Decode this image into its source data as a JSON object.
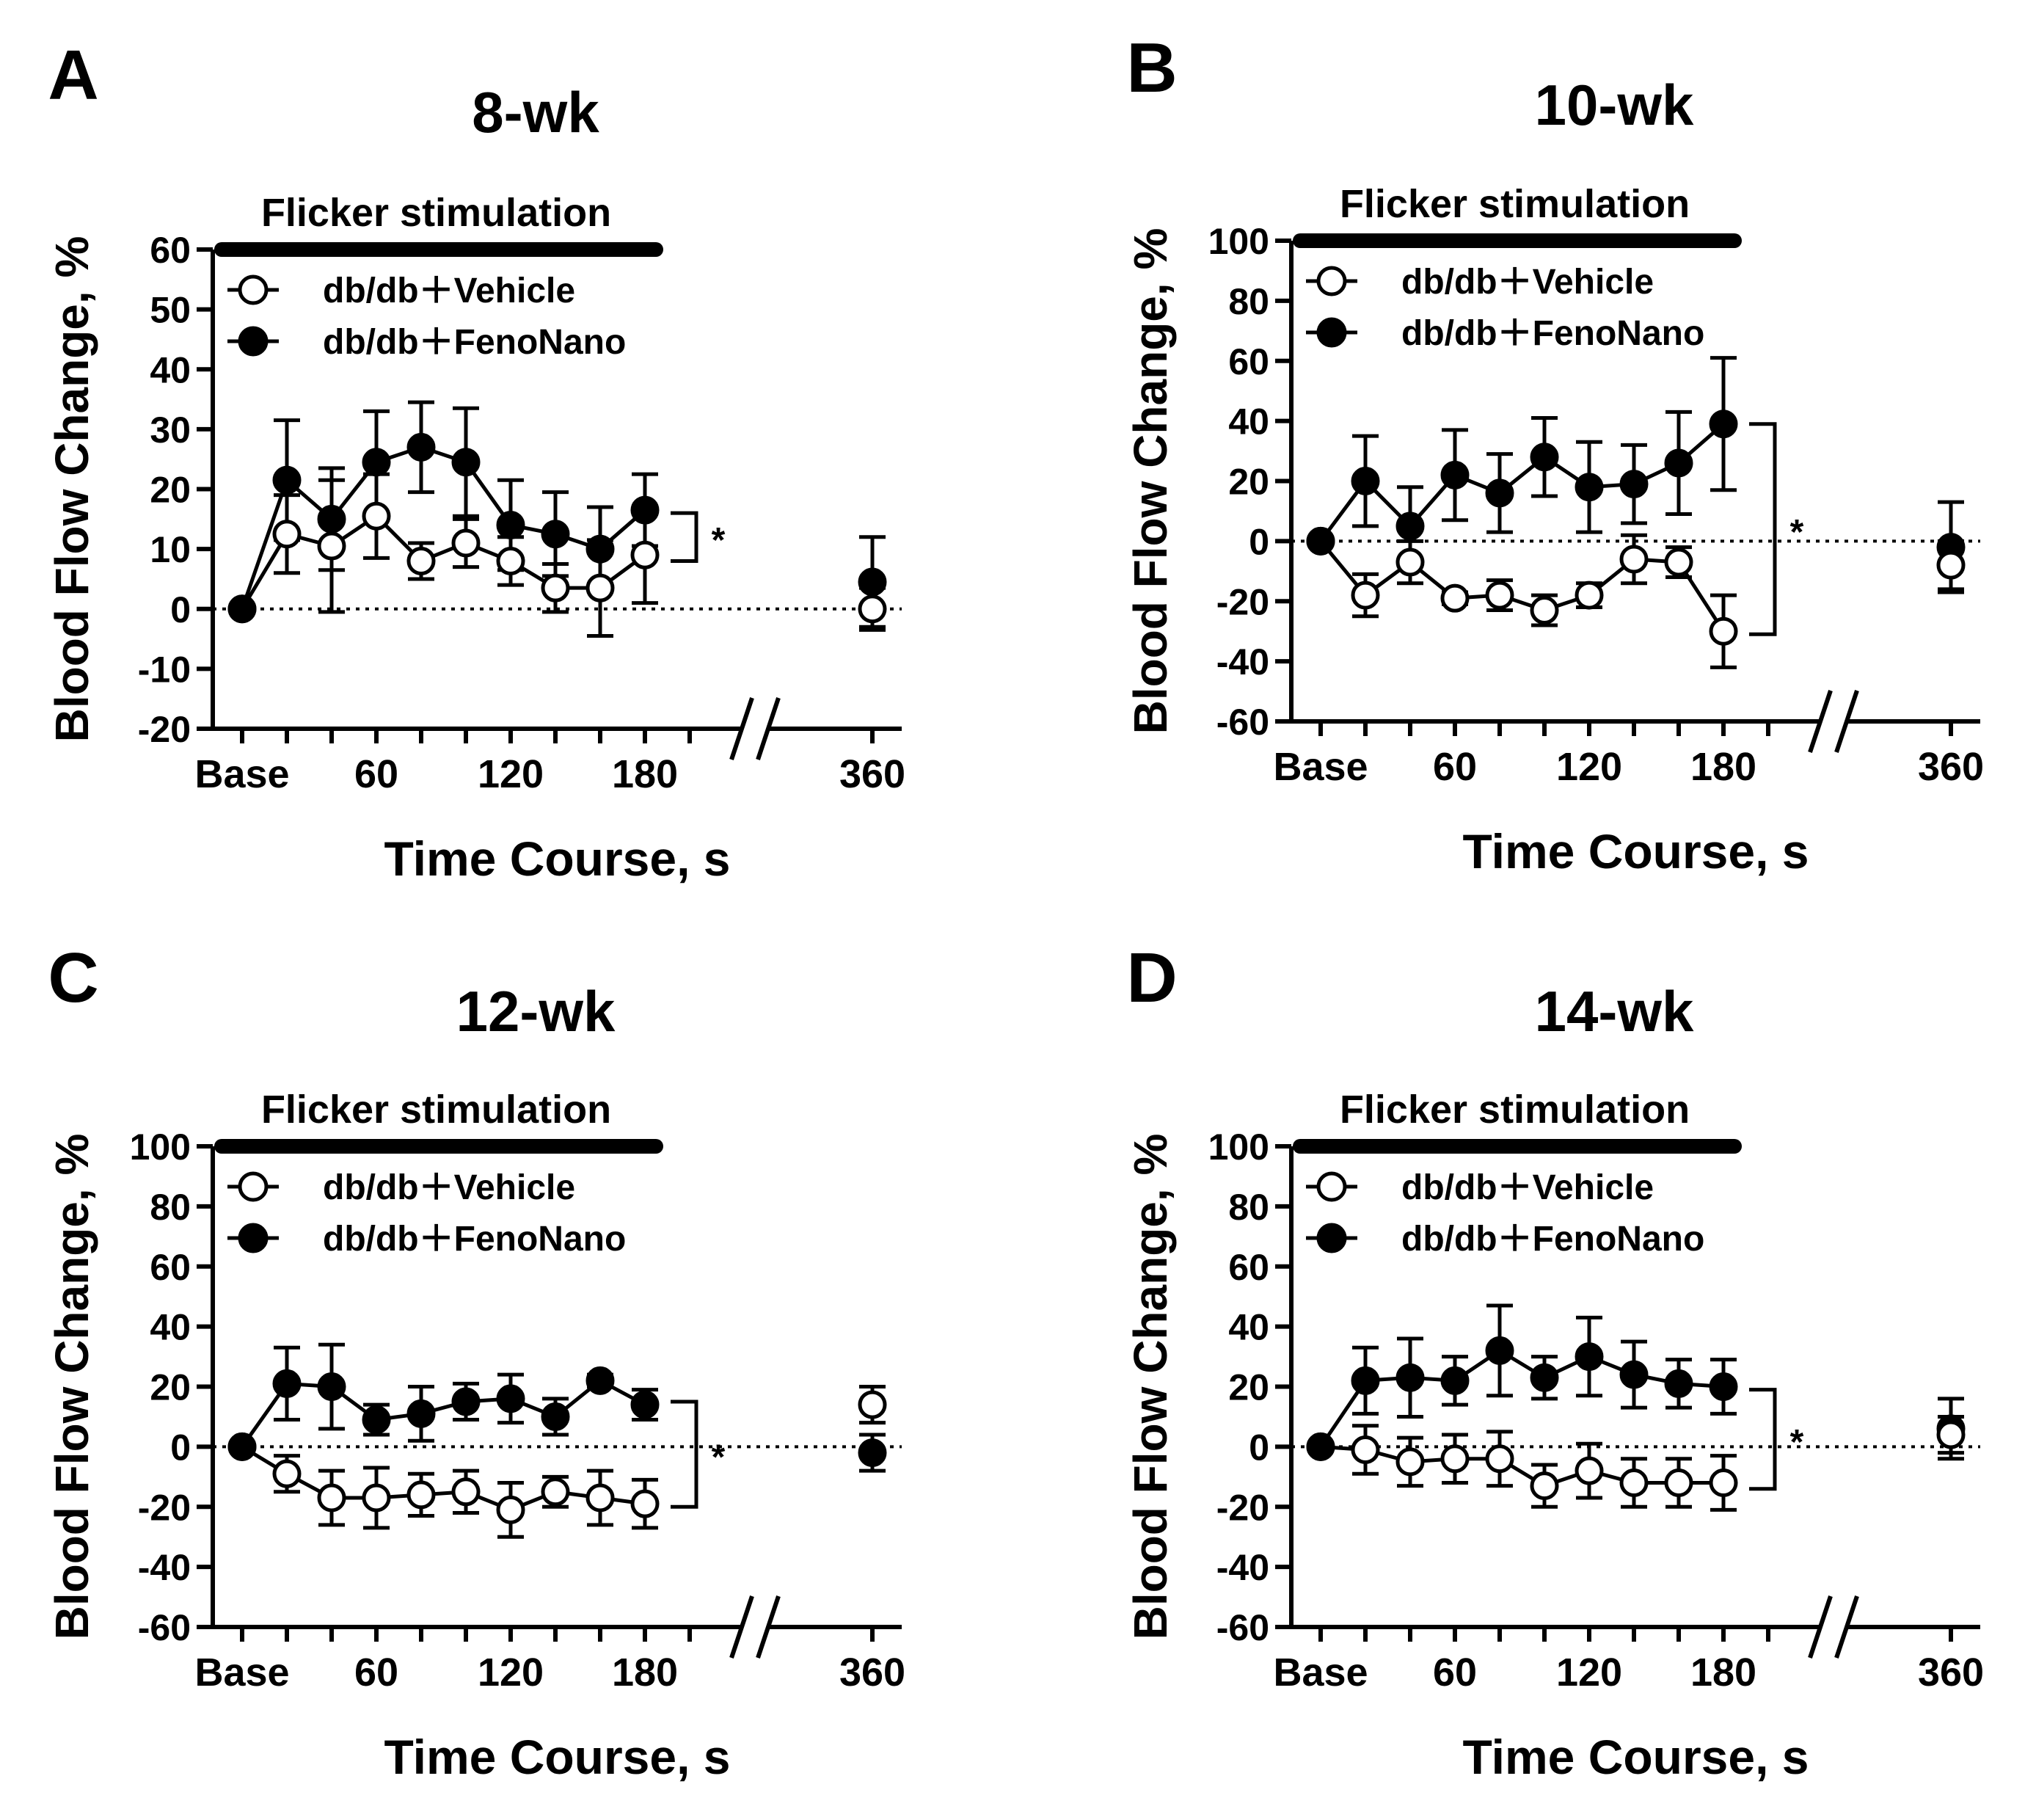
{
  "figure": {
    "x_tick_labels": [
      "Base",
      "60",
      "120",
      "180",
      "360"
    ],
    "x_tick_values": [
      0,
      60,
      120,
      180,
      360
    ],
    "xlabel": "Time Course, s",
    "ylabel": "Blood Flow Change, %",
    "stimulation_label": "Flicker stimulation",
    "legend": [
      "db/db＋Vehicle",
      "db/db＋FenoNano"
    ],
    "significance": "*",
    "colors": {
      "vehicle_fill": "#ffffff",
      "fenonano_fill": "#000000",
      "line": "#000000"
    }
  },
  "chart_data": [
    {
      "type": "line",
      "panel": "A",
      "title": "8-wk",
      "ylim": [
        -20,
        60
      ],
      "yticks": [
        -20,
        -10,
        0,
        10,
        20,
        30,
        40,
        50,
        60
      ],
      "x": [
        0,
        20,
        40,
        60,
        80,
        100,
        120,
        140,
        160,
        180
      ],
      "series": [
        {
          "name": "db/db＋Vehicle",
          "values": [
            0,
            12.5,
            10.5,
            15.5,
            8,
            11,
            8,
            3.5,
            3.5,
            9
          ],
          "errors": [
            0,
            6.5,
            11,
            7,
            3,
            4,
            4,
            4,
            8,
            8
          ],
          "late": {
            "x": 360,
            "value": 0,
            "error": 3.5
          }
        },
        {
          "name": "db/db＋FenoNano",
          "values": [
            0,
            21.5,
            15,
            24.5,
            27,
            24.5,
            14,
            12.5,
            10,
            16.5
          ],
          "errors": [
            0,
            10,
            8.5,
            8.5,
            7.5,
            9,
            7.5,
            7,
            7,
            6
          ],
          "late": {
            "x": 360,
            "value": 4.5,
            "error": 7.5
          }
        }
      ],
      "significance_span": [
        8,
        16
      ]
    },
    {
      "type": "line",
      "panel": "B",
      "title": "10-wk",
      "ylim": [
        -60,
        100
      ],
      "yticks": [
        -60,
        -40,
        -20,
        0,
        20,
        40,
        60,
        80,
        100
      ],
      "x": [
        0,
        20,
        40,
        60,
        80,
        100,
        120,
        140,
        160,
        180
      ],
      "series": [
        {
          "name": "db/db＋Vehicle",
          "values": [
            0,
            -18,
            -7,
            -19,
            -18,
            -23,
            -18,
            -6,
            -7,
            -30
          ],
          "errors": [
            0,
            7,
            7,
            2,
            5,
            5,
            4,
            8,
            5,
            12
          ],
          "late": {
            "x": 360,
            "value": -8,
            "error": 8
          }
        },
        {
          "name": "db/db＋FenoNano",
          "values": [
            0,
            20,
            5,
            22,
            16,
            28,
            18,
            19,
            26,
            39
          ],
          "errors": [
            0,
            15,
            13,
            15,
            13,
            13,
            15,
            13,
            17,
            22
          ],
          "late": {
            "x": 360,
            "value": -2,
            "error": 15
          }
        }
      ],
      "significance_span": [
        -31,
        39
      ]
    },
    {
      "type": "line",
      "panel": "C",
      "title": "12-wk",
      "ylim": [
        -60,
        100
      ],
      "yticks": [
        -60,
        -40,
        -20,
        0,
        20,
        40,
        60,
        80,
        100
      ],
      "x": [
        0,
        20,
        40,
        60,
        80,
        100,
        120,
        140,
        160,
        180
      ],
      "series": [
        {
          "name": "db/db＋Vehicle",
          "values": [
            0,
            -9,
            -17,
            -17,
            -16,
            -15,
            -21,
            -15,
            -17,
            -19
          ],
          "errors": [
            0,
            6,
            9,
            10,
            7,
            7,
            9,
            5,
            9,
            8
          ],
          "late": {
            "x": 360,
            "value": 14,
            "error": 6
          }
        },
        {
          "name": "db/db＋FenoNano",
          "values": [
            0,
            21,
            20,
            9,
            11,
            15,
            16,
            10,
            22,
            14
          ],
          "errors": [
            0,
            12,
            14,
            5,
            9,
            6,
            8,
            6,
            2,
            5
          ],
          "late": {
            "x": 360,
            "value": -2,
            "error": 6
          }
        }
      ],
      "significance_span": [
        -20,
        15
      ]
    },
    {
      "type": "line",
      "panel": "D",
      "title": "14-wk",
      "ylim": [
        -60,
        100
      ],
      "yticks": [
        -60,
        -40,
        -20,
        0,
        20,
        40,
        60,
        80,
        100
      ],
      "x": [
        0,
        20,
        40,
        60,
        80,
        100,
        120,
        140,
        160,
        180
      ],
      "series": [
        {
          "name": "db/db＋Vehicle",
          "values": [
            0,
            -1,
            -5,
            -4,
            -4,
            -13,
            -8,
            -12,
            -12,
            -12
          ],
          "errors": [
            0,
            8,
            8,
            8,
            9,
            7,
            9,
            8,
            8,
            9
          ],
          "late": {
            "x": 360,
            "value": 4,
            "error": 6
          }
        },
        {
          "name": "db/db＋FenoNano",
          "values": [
            0,
            22,
            23,
            22,
            32,
            23,
            30,
            24,
            21,
            20
          ],
          "errors": [
            0,
            11,
            13,
            8,
            15,
            7,
            13,
            11,
            8,
            9
          ],
          "late": {
            "x": 360,
            "value": 6,
            "error": 10
          }
        }
      ],
      "significance_span": [
        -14,
        19
      ]
    }
  ]
}
